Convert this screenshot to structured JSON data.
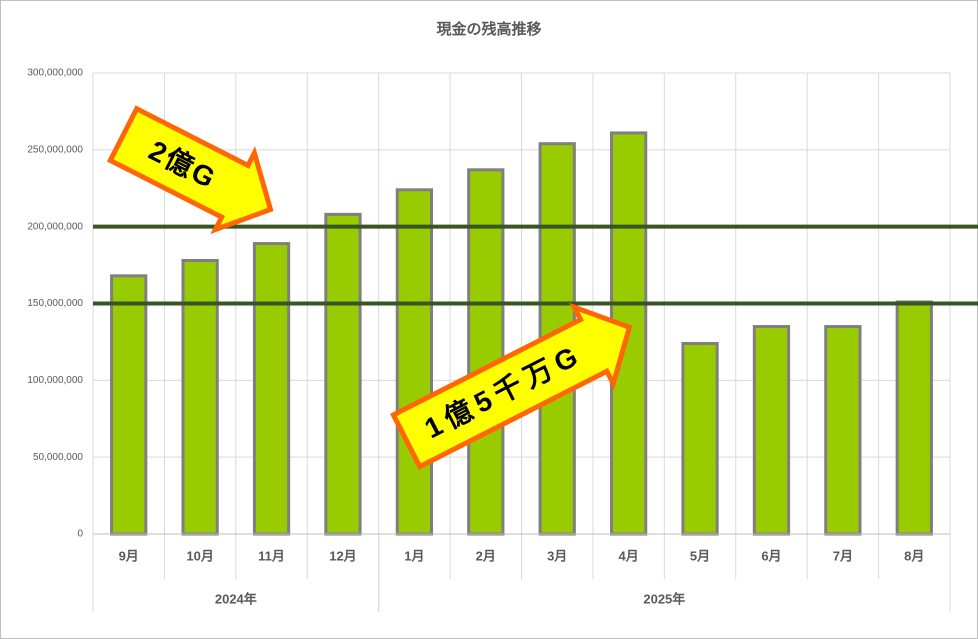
{
  "chart_data": {
    "type": "bar",
    "title": "現金の残高推移",
    "categories": [
      "9月",
      "10月",
      "11月",
      "12月",
      "1月",
      "2月",
      "3月",
      "4月",
      "5月",
      "6月",
      "7月",
      "8月"
    ],
    "groups": [
      {
        "label": "2024年",
        "count": 4
      },
      {
        "label": "2025年",
        "count": 8
      }
    ],
    "values": [
      168000000,
      178000000,
      189000000,
      208000000,
      224000000,
      237000000,
      254000000,
      261000000,
      124000000,
      135000000,
      135000000,
      151000000
    ],
    "color": "#99cc00",
    "edge_color": "#7f7f7f",
    "ylim": [
      0,
      300000000
    ],
    "yticks": [
      0,
      {
        "value": 50000000,
        "label": "50,000,000"
      },
      {
        "value": 100000000,
        "label": "100,000,000"
      },
      {
        "value": 150000000,
        "label": "150,000,000"
      },
      {
        "value": 200000000,
        "label": "200,000,000"
      },
      {
        "value": 250000000,
        "label": "250,000,000"
      },
      {
        "value": 300000000,
        "label": "300,000,000"
      }
    ],
    "grid": true,
    "reference_lines": [
      {
        "value": 200000000,
        "label": "2億G"
      },
      {
        "value": 150000000,
        "label": "1億5千万G"
      }
    ],
    "reference_color": "#375623"
  }
}
